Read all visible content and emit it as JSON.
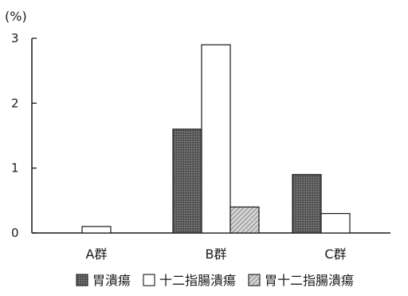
{
  "chart_data": {
    "type": "bar",
    "unit_label": "(%)",
    "categories": [
      "A群",
      "B群",
      "C群"
    ],
    "series": [
      {
        "name": "胃潰瘍",
        "values": [
          0,
          1.6,
          0.9
        ],
        "color": "#6e6e6e",
        "pattern": "dark-stipple"
      },
      {
        "name": "十二指腸潰瘍",
        "values": [
          0.1,
          2.9,
          0.3
        ],
        "color": "#ffffff",
        "pattern": "none"
      },
      {
        "name": "胃十二指腸潰瘍",
        "values": [
          0,
          0.4,
          0
        ],
        "color": "#bdbdbd",
        "pattern": "hatch"
      }
    ],
    "ylim": [
      0,
      3
    ],
    "yticks": [
      "0",
      "1",
      "2",
      "3"
    ],
    "grid": false,
    "legend_position": "bottom"
  }
}
